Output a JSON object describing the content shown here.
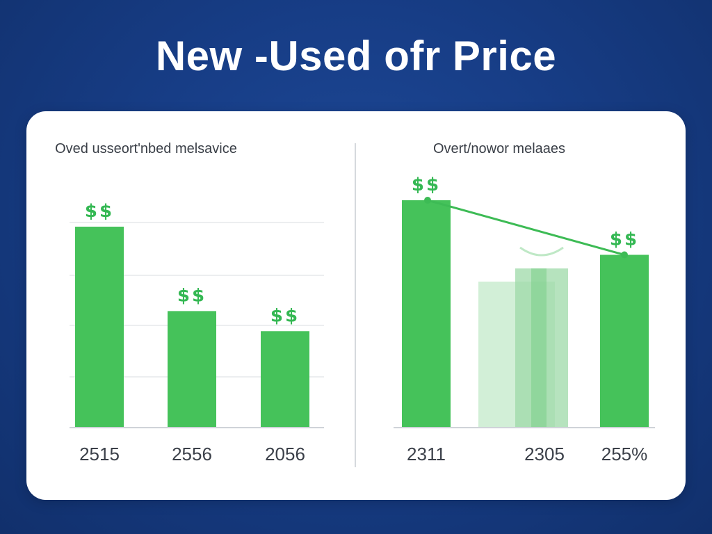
{
  "page_title": "New -Used ofr Price",
  "colors": {
    "background": "#173d86",
    "card": "#ffffff",
    "bar": "#45c25a",
    "bar_faded": "#bfe8c6",
    "label_green": "#34b853",
    "text_dark": "#3b4049",
    "gridline": "#e6e8eb"
  },
  "chart_data": [
    {
      "type": "bar",
      "title": "Oved usseort'nbed melsavice",
      "categories": [
        "2515",
        "2556",
        "2056"
      ],
      "values": [
        100,
        58,
        48
      ],
      "ylim": [
        0,
        100
      ],
      "data_labels": [
        "$$",
        "$$",
        "$$"
      ],
      "grid": true
    },
    {
      "type": "bar",
      "title": "Overt/nowor melaaes",
      "categories": [
        "2311",
        "2305",
        "255%"
      ],
      "values": [
        100,
        70,
        76
      ],
      "ylim": [
        0,
        100
      ],
      "data_labels": [
        "$$",
        "",
        "$$"
      ],
      "trend_line": true,
      "grid": false
    }
  ]
}
